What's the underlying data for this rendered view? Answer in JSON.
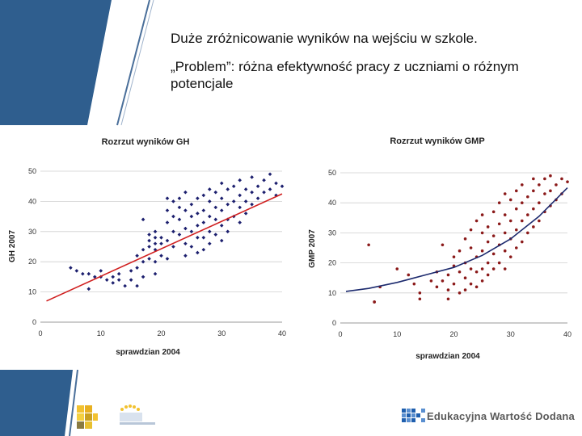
{
  "slide": {
    "line1": "Duże zróżnicowanie wyników na wejściu w szkole.",
    "line2": "„Problem”: różna efektywność pracy z uczniami o różnym potencjale",
    "footer_brand": "Edukacyjna Wartość Dodana",
    "colors": {
      "side_block": "#2f5e8e",
      "gh_points": "#1c1f6e",
      "gh_trend": "#d02020",
      "gmp_points": "#8b1a1a",
      "gmp_trend": "#1c2a6e"
    }
  },
  "chart_data": [
    {
      "type": "scatter",
      "title": "Rozrzut wyników GH",
      "xlabel": "sprawdzian 2004",
      "ylabel": "GH 2007",
      "xlim": [
        0,
        40
      ],
      "ylim": [
        0,
        50
      ],
      "xticks": [
        0,
        10,
        20,
        30,
        40
      ],
      "yticks": [
        0,
        10,
        20,
        30,
        40,
        50
      ],
      "grid": "horizontal",
      "trend": {
        "type": "linear",
        "points": [
          [
            1,
            7
          ],
          [
            40,
            42.5
          ]
        ]
      },
      "points": [
        [
          5,
          18
        ],
        [
          6,
          17
        ],
        [
          7,
          16
        ],
        [
          8,
          16
        ],
        [
          8,
          11
        ],
        [
          9,
          15
        ],
        [
          10,
          17
        ],
        [
          10,
          15
        ],
        [
          11,
          14
        ],
        [
          12,
          15
        ],
        [
          12,
          13
        ],
        [
          13,
          16
        ],
        [
          13,
          14
        ],
        [
          14,
          12
        ],
        [
          15,
          14
        ],
        [
          15,
          17
        ],
        [
          16,
          22
        ],
        [
          16,
          18
        ],
        [
          16,
          12
        ],
        [
          17,
          24
        ],
        [
          17,
          20
        ],
        [
          17,
          15
        ],
        [
          17,
          34
        ],
        [
          18,
          29
        ],
        [
          18,
          27
        ],
        [
          18,
          25
        ],
        [
          18,
          21
        ],
        [
          19,
          30
        ],
        [
          19,
          28
        ],
        [
          19,
          26
        ],
        [
          19,
          24
        ],
        [
          19,
          20
        ],
        [
          19,
          16
        ],
        [
          20,
          28
        ],
        [
          20,
          26
        ],
        [
          20,
          22
        ],
        [
          21,
          41
        ],
        [
          21,
          37
        ],
        [
          21,
          33
        ],
        [
          21,
          27
        ],
        [
          21,
          21
        ],
        [
          22,
          40
        ],
        [
          22,
          35
        ],
        [
          22,
          30
        ],
        [
          22,
          25
        ],
        [
          23,
          41
        ],
        [
          23,
          38
        ],
        [
          23,
          34
        ],
        [
          23,
          29
        ],
        [
          24,
          43
        ],
        [
          24,
          37
        ],
        [
          24,
          31
        ],
        [
          24,
          26
        ],
        [
          24,
          22
        ],
        [
          25,
          39
        ],
        [
          25,
          35
        ],
        [
          25,
          30
        ],
        [
          25,
          25
        ],
        [
          26,
          41
        ],
        [
          26,
          36
        ],
        [
          26,
          32
        ],
        [
          26,
          28
        ],
        [
          26,
          23
        ],
        [
          27,
          42
        ],
        [
          27,
          37
        ],
        [
          27,
          33
        ],
        [
          27,
          28
        ],
        [
          27,
          24
        ],
        [
          28,
          44
        ],
        [
          28,
          40
        ],
        [
          28,
          35
        ],
        [
          28,
          30
        ],
        [
          28,
          26
        ],
        [
          29,
          43
        ],
        [
          29,
          38
        ],
        [
          29,
          34
        ],
        [
          29,
          29
        ],
        [
          30,
          46
        ],
        [
          30,
          41
        ],
        [
          30,
          37
        ],
        [
          30,
          32
        ],
        [
          30,
          27
        ],
        [
          31,
          44
        ],
        [
          31,
          39
        ],
        [
          31,
          34
        ],
        [
          31,
          30
        ],
        [
          32,
          45
        ],
        [
          32,
          40
        ],
        [
          32,
          35
        ],
        [
          33,
          47
        ],
        [
          33,
          42
        ],
        [
          33,
          38
        ],
        [
          33,
          33
        ],
        [
          34,
          44
        ],
        [
          34,
          40
        ],
        [
          34,
          36
        ],
        [
          35,
          48
        ],
        [
          35,
          43
        ],
        [
          35,
          39
        ],
        [
          36,
          45
        ],
        [
          36,
          41
        ],
        [
          37,
          47
        ],
        [
          37,
          43
        ],
        [
          38,
          49
        ],
        [
          38,
          44
        ],
        [
          39,
          46
        ],
        [
          39,
          42
        ],
        [
          40,
          45
        ]
      ]
    },
    {
      "type": "scatter",
      "title": "Rozrzut wyników GMP",
      "xlabel": "sprawdzian 2004",
      "ylabel": "GMP 2007",
      "xlim": [
        0,
        40
      ],
      "ylim": [
        0,
        50
      ],
      "xticks": [
        0,
        10,
        20,
        30,
        40
      ],
      "yticks": [
        0,
        10,
        20,
        30,
        40,
        50
      ],
      "grid": "horizontal",
      "trend": {
        "type": "curve",
        "points": [
          [
            1,
            10.5
          ],
          [
            5,
            11.5
          ],
          [
            10,
            13.5
          ],
          [
            15,
            16
          ],
          [
            20,
            18.5
          ],
          [
            25,
            22.5
          ],
          [
            30,
            28
          ],
          [
            35,
            35.5
          ],
          [
            40,
            45
          ]
        ]
      },
      "points": [
        [
          5,
          26
        ],
        [
          6,
          7
        ],
        [
          6,
          7
        ],
        [
          7,
          12
        ],
        [
          10,
          18
        ],
        [
          12,
          16
        ],
        [
          13,
          13
        ],
        [
          14,
          10
        ],
        [
          14,
          8
        ],
        [
          16,
          14
        ],
        [
          17,
          17
        ],
        [
          17,
          12
        ],
        [
          18,
          26
        ],
        [
          18,
          14
        ],
        [
          19,
          16
        ],
        [
          19,
          11
        ],
        [
          19,
          8
        ],
        [
          20,
          22
        ],
        [
          20,
          19
        ],
        [
          20,
          13
        ],
        [
          21,
          17
        ],
        [
          21,
          10
        ],
        [
          21,
          24
        ],
        [
          22,
          28
        ],
        [
          22,
          20
        ],
        [
          22,
          15
        ],
        [
          22,
          11
        ],
        [
          23,
          31
        ],
        [
          23,
          25
        ],
        [
          23,
          18
        ],
        [
          23,
          13
        ],
        [
          24,
          34
        ],
        [
          24,
          22
        ],
        [
          24,
          17
        ],
        [
          24,
          12
        ],
        [
          25,
          36
        ],
        [
          25,
          30
        ],
        [
          25,
          24
        ],
        [
          25,
          18
        ],
        [
          25,
          14
        ],
        [
          26,
          32
        ],
        [
          26,
          27
        ],
        [
          26,
          20
        ],
        [
          26,
          16
        ],
        [
          27,
          37
        ],
        [
          27,
          29
        ],
        [
          27,
          23
        ],
        [
          27,
          18
        ],
        [
          28,
          40
        ],
        [
          28,
          33
        ],
        [
          28,
          26
        ],
        [
          28,
          20
        ],
        [
          29,
          43
        ],
        [
          29,
          36
        ],
        [
          29,
          30
        ],
        [
          29,
          24
        ],
        [
          29,
          18
        ],
        [
          30,
          41
        ],
        [
          30,
          34
        ],
        [
          30,
          28
        ],
        [
          30,
          22
        ],
        [
          31,
          44
        ],
        [
          31,
          38
        ],
        [
          31,
          31
        ],
        [
          31,
          25
        ],
        [
          32,
          46
        ],
        [
          32,
          40
        ],
        [
          32,
          34
        ],
        [
          32,
          27
        ],
        [
          33,
          42
        ],
        [
          33,
          36
        ],
        [
          33,
          30
        ],
        [
          34,
          48
        ],
        [
          34,
          44
        ],
        [
          34,
          38
        ],
        [
          34,
          32
        ],
        [
          35,
          46
        ],
        [
          35,
          40
        ],
        [
          35,
          34
        ],
        [
          36,
          48
        ],
        [
          36,
          43
        ],
        [
          36,
          37
        ],
        [
          37,
          49
        ],
        [
          37,
          44
        ],
        [
          37,
          39
        ],
        [
          38,
          46
        ],
        [
          38,
          41
        ],
        [
          39,
          48
        ],
        [
          39,
          43
        ],
        [
          40,
          47
        ]
      ]
    }
  ]
}
